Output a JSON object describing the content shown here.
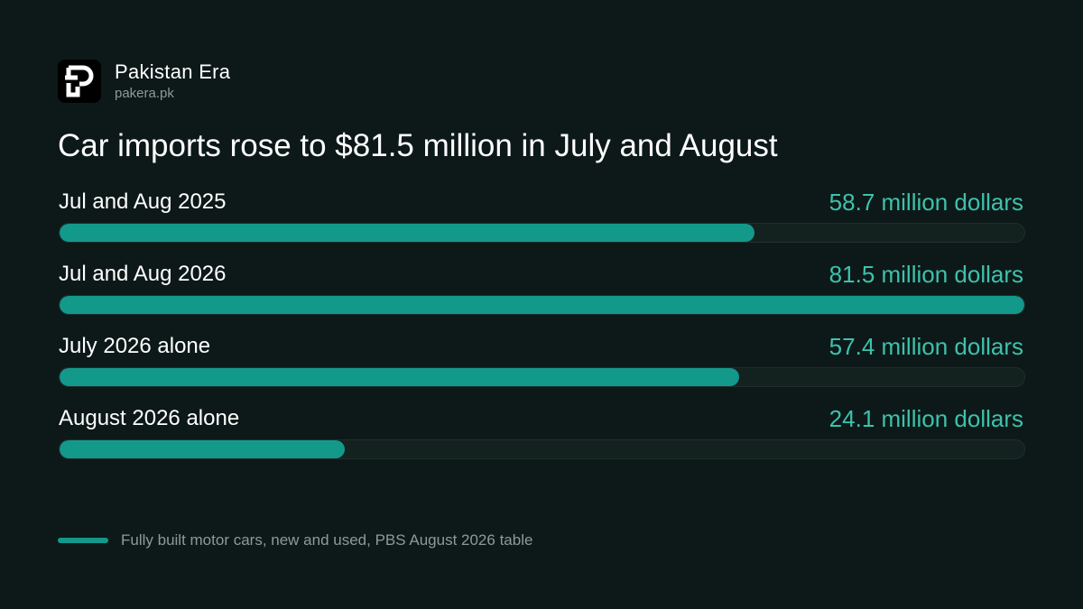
{
  "brand": {
    "name": "Pakistan Era",
    "url": "pakera.pk",
    "logo_icon": "pakistan-era-logo-icon"
  },
  "colors": {
    "background": "#0d1918",
    "bar_fill": "#12998a",
    "bar_track": "#13211f",
    "value_text": "#3ec1ac",
    "muted_text": "#8e9a98"
  },
  "chart_data": {
    "type": "bar",
    "orientation": "horizontal",
    "title": "Car imports rose to $81.5 million in July and August",
    "categories": [
      "Jul and Aug 2025",
      "Jul and Aug 2026",
      "July 2026 alone",
      "August 2026 alone"
    ],
    "values": [
      58.7,
      81.5,
      57.4,
      24.1
    ],
    "value_labels": [
      "58.7 million dollars",
      "81.5 million dollars",
      "57.4 million dollars",
      "24.1 million dollars"
    ],
    "xlim": [
      0,
      81.5
    ],
    "grid": false,
    "legend": {
      "placement": "bottom-left",
      "text": "Fully built motor cars, new and used, PBS August 2026 table"
    }
  }
}
